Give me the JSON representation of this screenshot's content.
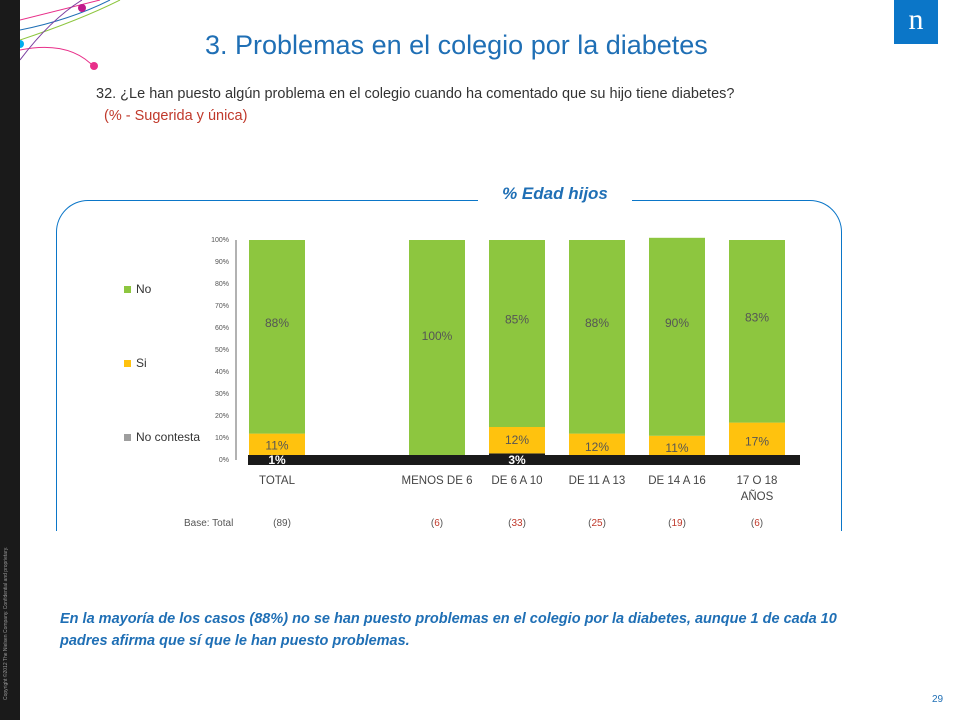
{
  "title": "3. Problemas en el colegio por la diabetes",
  "question": "32. ¿Le han puesto algún problema en el colegio cuando ha comentado que su hijo tiene diabetes?",
  "note": "(% - Sugerida y única)",
  "frame_label": "% Edad hijos",
  "logo_text": "n",
  "copyright": "Copyright ©2012 The Nielsen Company. Confidential and proprietary.",
  "base_label": "Base: Total",
  "bases": [
    "89",
    "6",
    "33",
    "25",
    "19",
    "6"
  ],
  "conclusion": "En la mayoría de los casos (88%) no se han puesto problemas en el colegio por la diabetes, aunque 1 de cada 10 padres afirma que sí que le han puesto problemas.",
  "page_number": "29",
  "colors": {
    "no": "#8dc63f",
    "si": "#ffc20e",
    "no_contesta": "#1a1a1a",
    "accent": "#1f6fb5"
  },
  "chart_data": {
    "type": "bar",
    "stacked": true,
    "categories": [
      "TOTAL",
      "MENOS DE 6",
      "DE 6 A 10",
      "DE 11  A 13",
      "DE 14  A 16",
      "17 O 18 AÑOS"
    ],
    "series": [
      {
        "name": "No contesta",
        "values": [
          1,
          0,
          3,
          0,
          0,
          0
        ],
        "labels": [
          "1%",
          "",
          "3%",
          "",
          "",
          ""
        ]
      },
      {
        "name": "Si",
        "values": [
          11,
          0,
          12,
          12,
          11,
          17
        ],
        "labels": [
          "11%",
          "",
          "12%",
          "12%",
          "11%",
          "17%"
        ]
      },
      {
        "name": "No",
        "values": [
          88,
          100,
          85,
          88,
          90,
          83
        ],
        "labels": [
          "88%",
          "100%",
          "85%",
          "88%",
          "90%",
          "83%"
        ]
      }
    ],
    "legend": [
      "No",
      "Si",
      "No contesta"
    ],
    "legend_position": "left",
    "ylim": [
      0,
      100
    ],
    "yticks": [
      "0%",
      "10%",
      "20%",
      "30%",
      "40%",
      "50%",
      "60%",
      "70%",
      "80%",
      "90%",
      "100%"
    ]
  }
}
